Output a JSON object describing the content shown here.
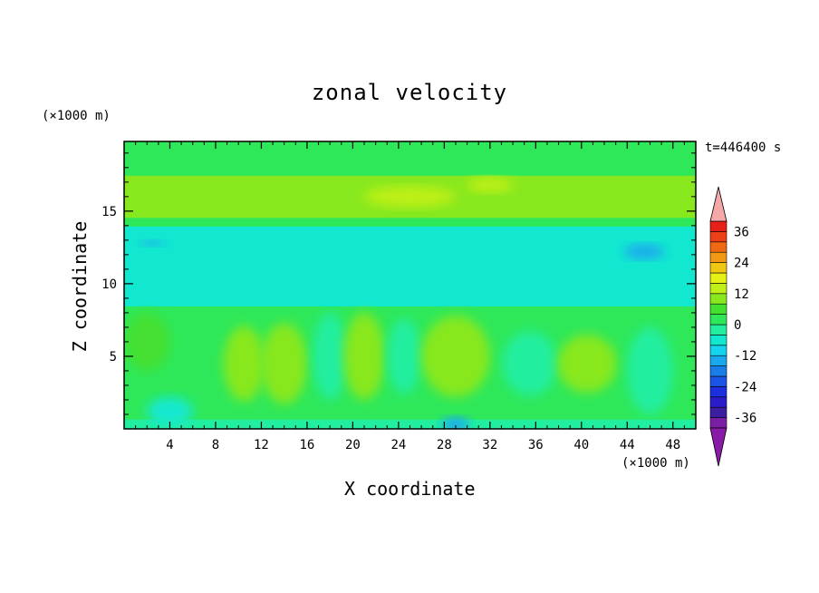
{
  "chart_data": {
    "type": "heatmap",
    "title": "zonal velocity",
    "xlabel": "X coordinate",
    "ylabel": "Z coordinate",
    "x_unit": "(×1000 m)",
    "y_unit": "(×1000 m)",
    "time_label": "t=446400 s",
    "xlim": [
      0,
      50
    ],
    "ylim": [
      0,
      19.8
    ],
    "x_ticks": [
      4,
      8,
      12,
      16,
      20,
      24,
      28,
      32,
      36,
      40,
      44,
      48
    ],
    "y_ticks": [
      5,
      10,
      15
    ],
    "colorbar": {
      "levels": [
        -40,
        -36,
        -32,
        -28,
        -24,
        -20,
        -16,
        -12,
        -8,
        -4,
        0,
        4,
        8,
        12,
        16,
        20,
        24,
        28,
        32,
        36,
        40
      ],
      "labels": [
        36,
        24,
        12,
        0,
        -12,
        -24,
        -36
      ],
      "colors": [
        "#7a1fa2",
        "#3b1fa0",
        "#2a1cc8",
        "#1e2fe0",
        "#1b55e8",
        "#1a7ee8",
        "#1aa8ee",
        "#15d4f0",
        "#12e8d0",
        "#22eea0",
        "#2ee85a",
        "#44e030",
        "#88e81e",
        "#c0f018",
        "#e6f014",
        "#f0c814",
        "#f09a14",
        "#f06a14",
        "#ee4018",
        "#e82018"
      ],
      "over_color": "#f4a8a8",
      "under_color": "#8a1aa8"
    },
    "bands": [
      {
        "z": [
          0,
          0.7
        ],
        "value": -1
      },
      {
        "z": [
          0.7,
          2.5
        ],
        "value": 2
      },
      {
        "z": [
          2.5,
          8.5
        ],
        "value": 3
      },
      {
        "z": [
          8.5,
          12.5
        ],
        "value": -5
      },
      {
        "z": [
          12.5,
          14.0
        ],
        "value": -8
      },
      {
        "z": [
          14.0,
          14.6
        ],
        "value": 2
      },
      {
        "z": [
          14.6,
          17.5
        ],
        "value": 9
      },
      {
        "z": [
          17.5,
          18.6
        ],
        "value": 3
      },
      {
        "z": [
          18.6,
          19.8
        ],
        "value": 1
      }
    ],
    "blobs": [
      {
        "x": 2.0,
        "z": 6.0,
        "rx": 2.0,
        "rz": 2.0,
        "value": 7
      },
      {
        "x": 10.5,
        "z": 4.5,
        "rx": 1.8,
        "rz": 2.6,
        "value": 8
      },
      {
        "x": 14.0,
        "z": 4.5,
        "rx": 2.0,
        "rz": 2.8,
        "value": 8
      },
      {
        "x": 18.0,
        "z": 5.0,
        "rx": 1.5,
        "rz": 3.0,
        "value": -2
      },
      {
        "x": 21.0,
        "z": 5.0,
        "rx": 1.8,
        "rz": 3.0,
        "value": 8
      },
      {
        "x": 24.5,
        "z": 5.0,
        "rx": 1.5,
        "rz": 2.6,
        "value": -4
      },
      {
        "x": 29.0,
        "z": 5.0,
        "rx": 3.0,
        "rz": 2.8,
        "value": 10
      },
      {
        "x": 35.5,
        "z": 4.5,
        "rx": 2.4,
        "rz": 2.2,
        "value": -4
      },
      {
        "x": 40.5,
        "z": 4.5,
        "rx": 2.6,
        "rz": 2.0,
        "value": 10
      },
      {
        "x": 46.0,
        "z": 4.0,
        "rx": 2.0,
        "rz": 3.0,
        "value": -3
      },
      {
        "x": 4.0,
        "z": 1.2,
        "rx": 2.0,
        "rz": 1.0,
        "value": -6
      },
      {
        "x": 29.0,
        "z": 0.3,
        "rx": 1.2,
        "rz": 0.5,
        "value": -13
      },
      {
        "x": 25.0,
        "z": 16.0,
        "rx": 4.0,
        "rz": 0.7,
        "value": 13
      },
      {
        "x": 32.0,
        "z": 16.8,
        "rx": 2.0,
        "rz": 0.5,
        "value": 14
      },
      {
        "x": 45.5,
        "z": 12.2,
        "rx": 1.8,
        "rz": 0.5,
        "value": -14
      },
      {
        "x": 2.5,
        "z": 12.8,
        "rx": 1.2,
        "rz": 0.2,
        "value": -14
      }
    ]
  }
}
